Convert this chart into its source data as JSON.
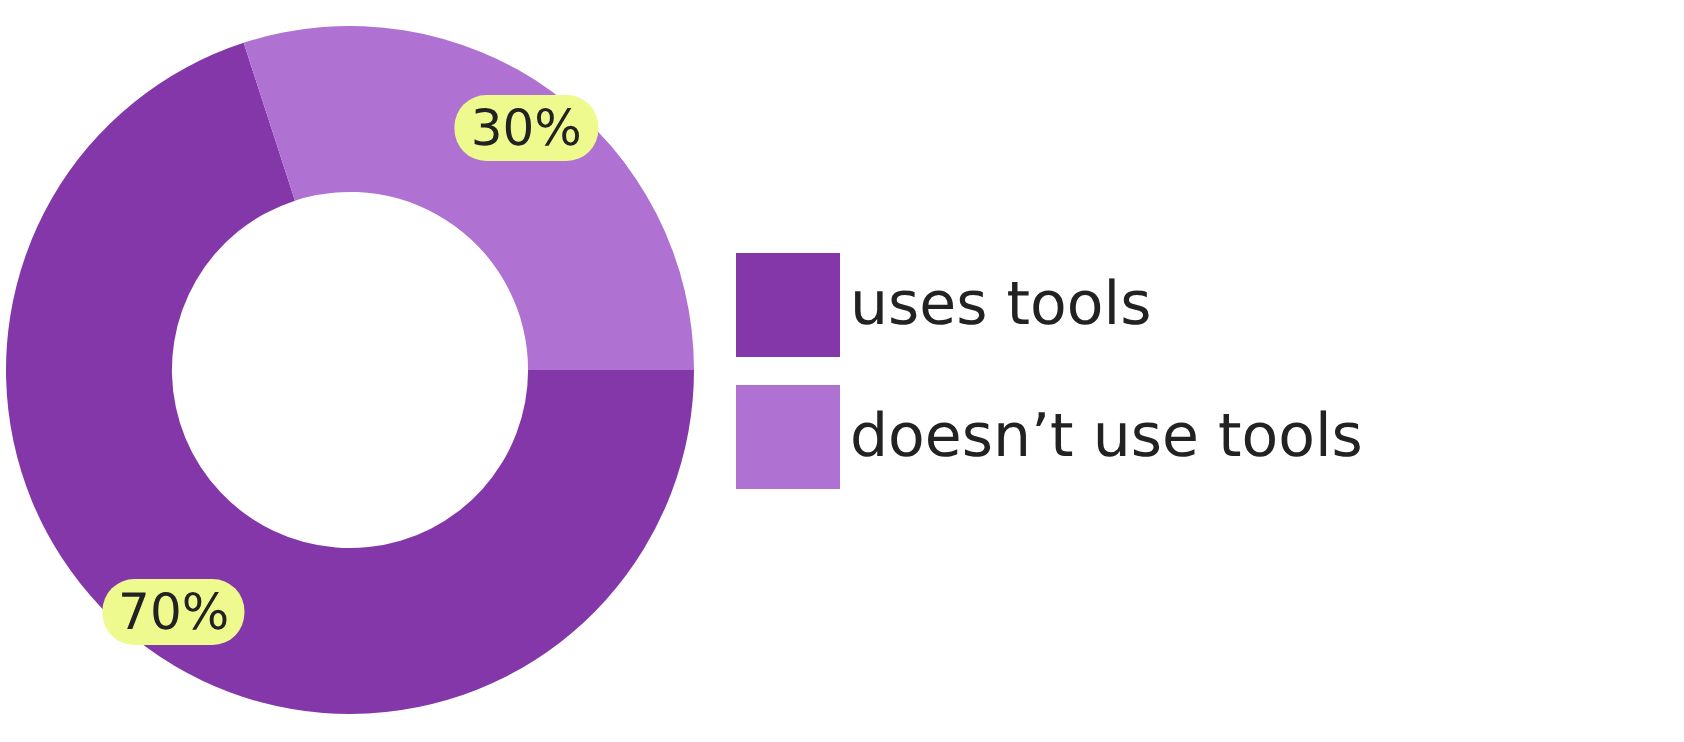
{
  "chart_data": {
    "type": "donut",
    "categories": [
      "uses tools",
      "doesn’t use tools"
    ],
    "values": [
      70,
      30
    ],
    "value_labels": [
      "70%",
      "30%"
    ],
    "colors": [
      "#8437a9",
      "#b072d2"
    ],
    "legend": "right"
  }
}
